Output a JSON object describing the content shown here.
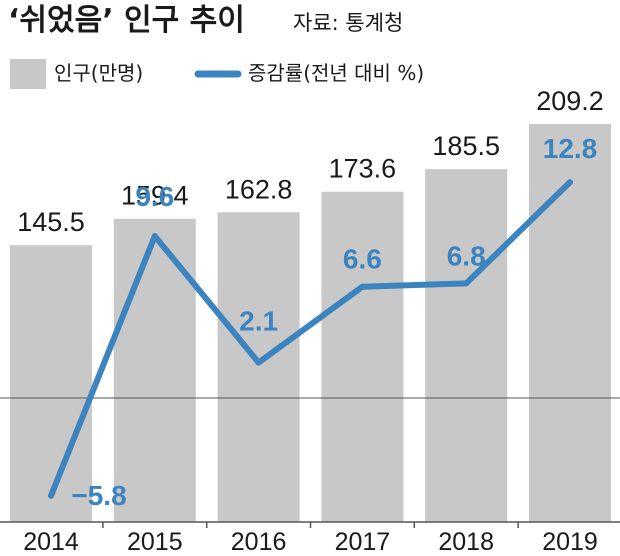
{
  "title": "‘쉬었음’ 인구 추이",
  "source": "자료: 통계청",
  "colors": {
    "bar": "#c8c8c8",
    "line": "#3c84bf",
    "text": "#1a1a1a",
    "axis": "#555555"
  },
  "chart_data": {
    "type": "bar",
    "categories": [
      "2014",
      "2015",
      "2016",
      "2017",
      "2018",
      "2019"
    ],
    "series": [
      {
        "name": "인구(만명)",
        "type": "bar",
        "values": [
          145.5,
          159.4,
          162.8,
          173.6,
          185.5,
          209.2
        ]
      },
      {
        "name": "증감률(전년 대비 %)",
        "type": "line",
        "values": [
          -5.8,
          9.6,
          2.1,
          6.6,
          6.8,
          12.8
        ]
      }
    ],
    "bar_value_labels": [
      "145.5",
      "159.4",
      "162.8",
      "173.6",
      "185.5",
      "209.2"
    ],
    "line_value_labels": [
      "−5.8",
      "9.6",
      "2.1",
      "6.6",
      "6.8",
      "12.8"
    ],
    "legend_position": "top-left",
    "grid": false
  }
}
